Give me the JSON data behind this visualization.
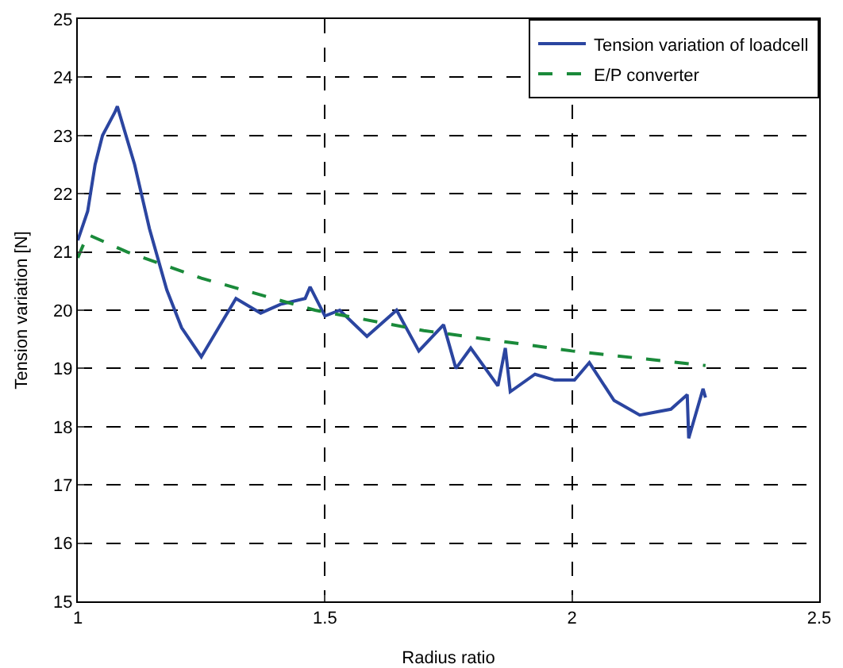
{
  "chart_data": {
    "type": "line",
    "xlabel": "Radius ratio",
    "ylabel": "Tension variation [N]",
    "xlim": [
      1,
      2.5
    ],
    "xticks": [
      1,
      1.5,
      2,
      2.5
    ],
    "ylim": [
      15,
      25
    ],
    "yticks": [
      15,
      16,
      17,
      18,
      19,
      20,
      21,
      22,
      23,
      24,
      25
    ],
    "grid": true,
    "legend": "top right",
    "series": [
      {
        "name": "Tension variation of loadcell",
        "color": "#2b45a0",
        "line_style": "solid",
        "x": [
          1,
          1.02,
          1.035,
          1.05,
          1.075,
          1.08,
          1.115,
          1.145,
          1.18,
          1.21,
          1.25,
          1.32,
          1.37,
          1.41,
          1.46,
          1.47,
          1.5,
          1.53,
          1.585,
          1.645,
          1.69,
          1.74,
          1.765,
          1.795,
          1.85,
          1.865,
          1.875,
          1.925,
          1.965,
          2.005,
          2.035,
          2.085,
          2.137,
          2.2,
          2.233,
          2.236,
          2.265,
          2.27
        ],
        "values": [
          21.2,
          21.7,
          22.5,
          23.0,
          23.4,
          23.5,
          22.5,
          21.4,
          20.35,
          19.7,
          19.2,
          20.2,
          19.95,
          20.1,
          20.2,
          20.4,
          19.9,
          20.0,
          19.55,
          20.0,
          19.3,
          19.75,
          19.0,
          19.35,
          18.7,
          19.35,
          18.6,
          18.9,
          18.8,
          18.8,
          19.1,
          18.45,
          18.2,
          18.3,
          18.55,
          17.8,
          18.65,
          18.5
        ]
      },
      {
        "name": "E/P converter",
        "color": "#1a8a3a",
        "line_style": "dashed",
        "x": [
          1,
          1.02,
          1.1,
          1.25,
          1.48,
          1.7,
          2.0,
          2.27
        ],
        "values": [
          20.9,
          21.3,
          21.0,
          20.55,
          20.0,
          19.65,
          19.3,
          19.05
        ]
      }
    ]
  }
}
